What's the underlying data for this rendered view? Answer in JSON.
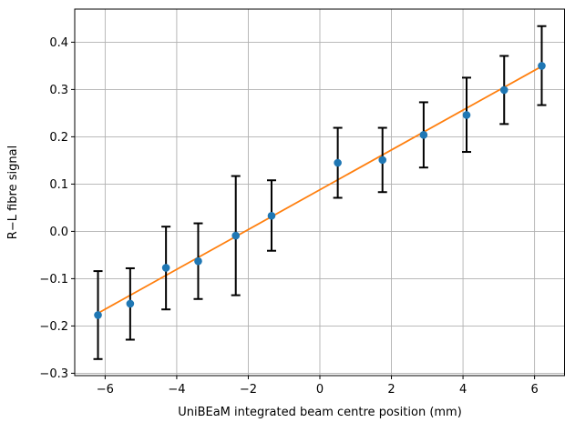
{
  "chart_data": {
    "type": "scatter",
    "title": "",
    "xlabel": "UniBEaM integrated beam centre position (mm)",
    "ylabel": "R−L fibre signal",
    "xlim": [
      -6.85,
      6.85
    ],
    "ylim": [
      -0.305,
      0.47
    ],
    "x_ticks": [
      -6,
      -4,
      -2,
      0,
      2,
      4,
      6
    ],
    "x_tick_labels": [
      "−6",
      "−4",
      "−2",
      "0",
      "2",
      "4",
      "6"
    ],
    "y_ticks": [
      -0.3,
      -0.2,
      -0.1,
      0.0,
      0.1,
      0.2,
      0.3,
      0.4
    ],
    "y_tick_labels": [
      "−0.3",
      "−0.2",
      "−0.1",
      "0.0",
      "0.1",
      "0.2",
      "0.3",
      "0.4"
    ],
    "grid": true,
    "series": [
      {
        "kind": "errorbar",
        "color": "#1f77b4",
        "errorbar_color": "#000000",
        "points": [
          {
            "x": -6.2,
            "y": -0.177,
            "ylo": -0.27,
            "yhi": -0.084
          },
          {
            "x": -5.3,
            "y": -0.153,
            "ylo": -0.229,
            "yhi": -0.078
          },
          {
            "x": -4.3,
            "y": -0.077,
            "ylo": -0.165,
            "yhi": 0.01
          },
          {
            "x": -3.4,
            "y": -0.063,
            "ylo": -0.143,
            "yhi": 0.017
          },
          {
            "x": -2.35,
            "y": -0.009,
            "ylo": -0.135,
            "yhi": 0.117
          },
          {
            "x": -1.35,
            "y": 0.033,
            "ylo": -0.041,
            "yhi": 0.108
          },
          {
            "x": 0.5,
            "y": 0.145,
            "ylo": 0.071,
            "yhi": 0.219
          },
          {
            "x": 1.75,
            "y": 0.151,
            "ylo": 0.083,
            "yhi": 0.219
          },
          {
            "x": 2.9,
            "y": 0.204,
            "ylo": 0.135,
            "yhi": 0.273
          },
          {
            "x": 4.1,
            "y": 0.246,
            "ylo": 0.168,
            "yhi": 0.325
          },
          {
            "x": 5.15,
            "y": 0.299,
            "ylo": 0.227,
            "yhi": 0.371
          },
          {
            "x": 6.2,
            "y": 0.35,
            "ylo": 0.267,
            "yhi": 0.434
          }
        ]
      },
      {
        "kind": "line",
        "color": "#ff7f0e",
        "x": [
          -6.2,
          6.2
        ],
        "y": [
          -0.173,
          0.349
        ]
      }
    ]
  }
}
